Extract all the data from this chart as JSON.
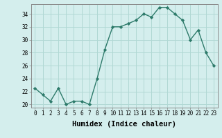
{
  "x": [
    0,
    1,
    2,
    3,
    4,
    5,
    6,
    7,
    8,
    9,
    10,
    11,
    12,
    13,
    14,
    15,
    16,
    17,
    18,
    19,
    20,
    21,
    22,
    23
  ],
  "y": [
    22.5,
    21.5,
    20.5,
    22.5,
    20.0,
    20.5,
    20.5,
    20.0,
    24.0,
    28.5,
    32.0,
    32.0,
    32.5,
    33.0,
    34.0,
    33.5,
    35.0,
    35.0,
    34.0,
    33.0,
    30.0,
    31.5,
    28.0,
    26.0
  ],
  "line_color": "#2d7a6a",
  "marker": "D",
  "markersize": 2.2,
  "linewidth": 1.0,
  "bg_color": "#d4eeed",
  "grid_color": "#b0d8d4",
  "xlabel": "Humidex (Indice chaleur)",
  "xlim": [
    -0.5,
    23.5
  ],
  "ylim": [
    19.5,
    35.5
  ],
  "yticks": [
    20,
    22,
    24,
    26,
    28,
    30,
    32,
    34
  ],
  "xticks": [
    0,
    1,
    2,
    3,
    4,
    5,
    6,
    7,
    8,
    9,
    10,
    11,
    12,
    13,
    14,
    15,
    16,
    17,
    18,
    19,
    20,
    21,
    22,
    23
  ],
  "tick_fontsize": 5.5,
  "xlabel_fontsize": 7.5
}
